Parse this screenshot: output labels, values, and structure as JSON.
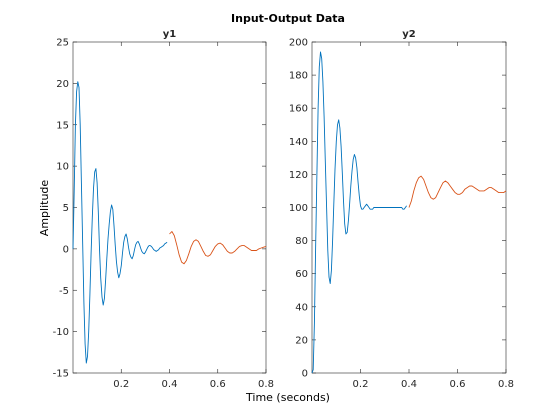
{
  "figure": {
    "title": "Input-Output Data",
    "xlabel": "Time (seconds)",
    "ylabel": "Amplitude"
  },
  "colors": {
    "series_estimation": "#0072bd",
    "series_validation": "#d95319",
    "axis": "#262626",
    "background": "#ffffff"
  },
  "chart_data": [
    {
      "type": "line",
      "title": "y1",
      "xlim": [
        0,
        0.8
      ],
      "ylim": [
        -15,
        25
      ],
      "xticks": [
        0.2,
        0.4,
        0.6,
        0.8
      ],
      "xtick_labels": [
        "0.2",
        "0.4",
        "0.6",
        "0.8"
      ],
      "yticks": [
        -15,
        -10,
        -5,
        0,
        5,
        10,
        15,
        20,
        25
      ],
      "ytick_labels": [
        "-15",
        "-10",
        "-5",
        "0",
        "5",
        "10",
        "15",
        "20",
        "25"
      ],
      "grid": false,
      "series": [
        {
          "color": "#0072bd",
          "x": [
            0.0,
            0.005,
            0.01,
            0.015,
            0.02,
            0.025,
            0.03,
            0.035,
            0.04,
            0.045,
            0.05,
            0.055,
            0.06,
            0.065,
            0.07,
            0.075,
            0.08,
            0.085,
            0.09,
            0.095,
            0.1,
            0.105,
            0.11,
            0.115,
            0.12,
            0.125,
            0.13,
            0.135,
            0.14,
            0.145,
            0.15,
            0.155,
            0.16,
            0.165,
            0.17,
            0.175,
            0.18,
            0.185,
            0.19,
            0.195,
            0.2,
            0.205,
            0.21,
            0.215,
            0.22,
            0.225,
            0.23,
            0.235,
            0.24,
            0.245,
            0.25,
            0.255,
            0.26,
            0.265,
            0.27,
            0.275,
            0.28,
            0.285,
            0.29,
            0.295,
            0.3,
            0.305,
            0.31,
            0.315,
            0.32,
            0.325,
            0.33,
            0.335,
            0.34,
            0.345,
            0.35,
            0.355,
            0.36,
            0.365,
            0.37,
            0.375,
            0.38,
            0.385,
            0.39
          ],
          "y": [
            0.0,
            7.0,
            15.0,
            19.0,
            20.2,
            19.5,
            15.0,
            8.0,
            0.5,
            -6.5,
            -11.5,
            -13.8,
            -13.0,
            -10.0,
            -5.5,
            -0.5,
            3.8,
            7.3,
            9.3,
            9.7,
            8.0,
            4.5,
            0.0,
            -3.5,
            -5.8,
            -6.8,
            -6.0,
            -3.8,
            -1.2,
            1.2,
            3.0,
            4.5,
            5.3,
            4.8,
            2.8,
            0.5,
            -1.5,
            -2.8,
            -3.5,
            -3.0,
            -2.0,
            -0.5,
            0.8,
            1.5,
            1.8,
            1.2,
            0.2,
            -0.6,
            -1.0,
            -1.2,
            -0.8,
            -0.1,
            0.5,
            0.8,
            0.9,
            0.6,
            0.1,
            -0.3,
            -0.5,
            -0.6,
            -0.4,
            -0.1,
            0.2,
            0.4,
            0.4,
            0.3,
            0.1,
            -0.1,
            -0.2,
            -0.3,
            -0.2,
            -0.1,
            0.1,
            0.2,
            0.3,
            0.4,
            0.6,
            0.7,
            0.8
          ]
        },
        {
          "color": "#d95319",
          "x": [
            0.4,
            0.41,
            0.42,
            0.43,
            0.44,
            0.45,
            0.46,
            0.47,
            0.48,
            0.49,
            0.5,
            0.51,
            0.52,
            0.53,
            0.54,
            0.55,
            0.56,
            0.57,
            0.58,
            0.59,
            0.6,
            0.61,
            0.62,
            0.63,
            0.64,
            0.65,
            0.66,
            0.67,
            0.68,
            0.69,
            0.7,
            0.71,
            0.72,
            0.73,
            0.74,
            0.75,
            0.76,
            0.77,
            0.78,
            0.79,
            0.8
          ],
          "y": [
            1.8,
            2.1,
            1.6,
            0.5,
            -0.7,
            -1.6,
            -1.8,
            -1.4,
            -0.6,
            0.3,
            0.9,
            1.1,
            0.9,
            0.3,
            -0.3,
            -0.8,
            -0.9,
            -0.7,
            -0.2,
            0.3,
            0.6,
            0.7,
            0.5,
            0.1,
            -0.3,
            -0.5,
            -0.5,
            -0.3,
            0.0,
            0.3,
            0.4,
            0.4,
            0.2,
            0.0,
            -0.2,
            -0.2,
            -0.2,
            0.0,
            0.1,
            0.2,
            0.3
          ]
        }
      ]
    },
    {
      "type": "line",
      "title": "y2",
      "xlim": [
        0,
        0.8
      ],
      "ylim": [
        0,
        200
      ],
      "xticks": [
        0.2,
        0.4,
        0.6,
        0.8
      ],
      "xtick_labels": [
        "0.2",
        "0.4",
        "0.6",
        "0.8"
      ],
      "yticks": [
        0,
        20,
        40,
        60,
        80,
        100,
        120,
        140,
        160,
        180,
        200
      ],
      "ytick_labels": [
        "0",
        "20",
        "40",
        "60",
        "80",
        "100",
        "120",
        "140",
        "160",
        "180",
        "200"
      ],
      "grid": false,
      "series": [
        {
          "color": "#0072bd",
          "x": [
            0.0,
            0.005,
            0.01,
            0.015,
            0.02,
            0.025,
            0.03,
            0.035,
            0.04,
            0.045,
            0.05,
            0.055,
            0.06,
            0.065,
            0.07,
            0.075,
            0.08,
            0.085,
            0.09,
            0.095,
            0.1,
            0.105,
            0.11,
            0.115,
            0.12,
            0.125,
            0.13,
            0.135,
            0.14,
            0.145,
            0.15,
            0.155,
            0.16,
            0.165,
            0.17,
            0.175,
            0.18,
            0.185,
            0.19,
            0.195,
            0.2,
            0.205,
            0.21,
            0.215,
            0.22,
            0.225,
            0.23,
            0.235,
            0.24,
            0.245,
            0.25,
            0.255,
            0.26,
            0.265,
            0.27,
            0.275,
            0.28,
            0.285,
            0.29,
            0.295,
            0.3,
            0.305,
            0.31,
            0.315,
            0.32,
            0.325,
            0.33,
            0.335,
            0.34,
            0.345,
            0.35,
            0.355,
            0.36,
            0.365,
            0.37,
            0.375,
            0.38,
            0.385,
            0.39
          ],
          "y": [
            0,
            2,
            30,
            75,
            120,
            160,
            185,
            194,
            190,
            176,
            155,
            128,
            100,
            74,
            58,
            54,
            62,
            80,
            102,
            123,
            140,
            150,
            153,
            148,
            137,
            121,
            104,
            90,
            84,
            85,
            92,
            102,
            113,
            122,
            129,
            132,
            130,
            124,
            115,
            107,
            101,
            99,
            99,
            100,
            101,
            102,
            101,
            100,
            99,
            99,
            99,
            100,
            100,
            100,
            100,
            100,
            100,
            100,
            100,
            100,
            100,
            100,
            100,
            100,
            100,
            100,
            100,
            100,
            100,
            100,
            100,
            100,
            100,
            100,
            100,
            99,
            99,
            100,
            101
          ]
        },
        {
          "color": "#d95319",
          "x": [
            0.4,
            0.41,
            0.42,
            0.43,
            0.44,
            0.45,
            0.46,
            0.47,
            0.48,
            0.49,
            0.5,
            0.51,
            0.52,
            0.53,
            0.54,
            0.55,
            0.56,
            0.57,
            0.58,
            0.59,
            0.6,
            0.61,
            0.62,
            0.63,
            0.64,
            0.65,
            0.66,
            0.67,
            0.68,
            0.69,
            0.7,
            0.71,
            0.72,
            0.73,
            0.74,
            0.75,
            0.76,
            0.77,
            0.78,
            0.79,
            0.8
          ],
          "y": [
            100,
            104,
            110,
            115,
            118,
            119,
            117,
            113,
            109,
            106,
            105,
            106,
            109,
            112,
            115,
            116,
            115,
            113,
            111,
            109,
            108,
            108,
            109,
            111,
            112,
            113,
            113,
            112,
            111,
            110,
            110,
            110,
            111,
            112,
            112,
            111,
            110,
            109,
            109,
            109,
            110
          ]
        }
      ]
    }
  ]
}
